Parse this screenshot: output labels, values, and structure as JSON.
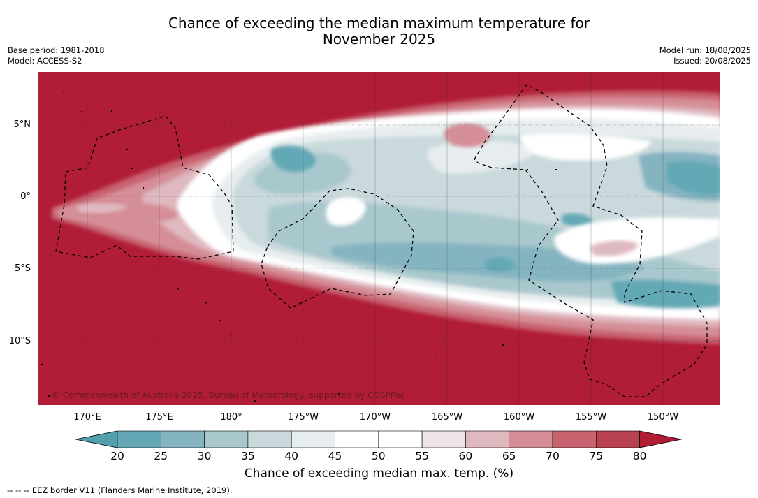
{
  "title": {
    "line1": "Chance of exceeding the median maximum temperature for",
    "line2": "November 2025"
  },
  "meta_left": {
    "base_period": "Base period: 1981-2018",
    "model": "Model: ACCESS-S2"
  },
  "meta_right": {
    "model_run": "Model run: 18/08/2025",
    "issued": "Issued: 20/08/2025"
  },
  "map": {
    "copyright": "© Commonwealth of Australia 2025, Bureau of Meteorology, supported by COSPPac",
    "lat_labels": [
      "5°N",
      "0°",
      "5°S",
      "10°S"
    ],
    "lon_labels": [
      "170°E",
      "175°E",
      "180°",
      "175°W",
      "170°W",
      "165°W",
      "160°W",
      "155°W",
      "150°W"
    ]
  },
  "colorbar": {
    "label": "Chance of exceeding median max. temp. (%)",
    "ticks": [
      "20",
      "25",
      "30",
      "35",
      "40",
      "45",
      "50",
      "55",
      "60",
      "65",
      "70",
      "75",
      "80"
    ],
    "colors": [
      "#64a8b5",
      "#85b4c1",
      "#a9c8cd",
      "#c9d9dc",
      "#e7edef",
      "#ffffff",
      "#ffffff",
      "#ece4e6",
      "#deb9bf",
      "#d58e97",
      "#c7646f",
      "#b84251"
    ],
    "below_color": "#52a0ab",
    "above_color": "#b11c37"
  },
  "legend": {
    "eez": "--  --  -- EEZ border V11 (Flanders Marine Institute, 2019)."
  }
}
